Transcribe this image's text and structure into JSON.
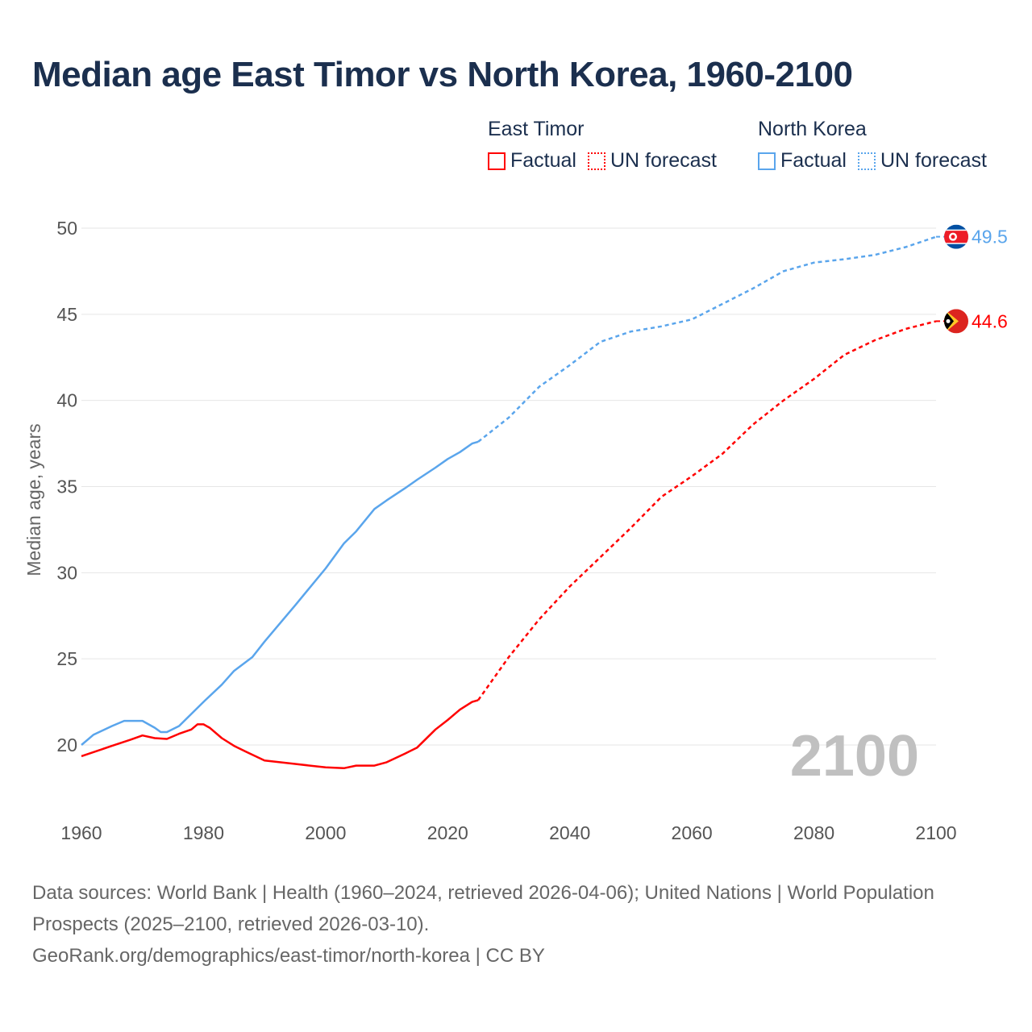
{
  "title": "Median age East Timor vs North Korea, 1960-2100",
  "legend": {
    "groups": [
      {
        "name": "East Timor",
        "factual": "Factual",
        "forecast": "UN forecast",
        "color": "#ff0000"
      },
      {
        "name": "North Korea",
        "factual": "Factual",
        "forecast": "UN forecast",
        "color": "#5aa5ec"
      }
    ]
  },
  "year_watermark": "2100",
  "footer": {
    "line1": "Data sources: World Bank | Health (1960–2024, retrieved 2026-04-06); United Nations | World Population Prospects (2025–2100, retrieved 2026-03-10).",
    "line2": "GeoRank.org/demographics/east-timor/north-korea | CC BY"
  },
  "chart_data": {
    "type": "line",
    "title": "Median age East Timor vs North Korea, 1960-2100",
    "xlabel": "",
    "ylabel": "Median age, years",
    "xlim": [
      1960,
      2100
    ],
    "ylim": [
      16.5,
      50
    ],
    "xticks": [
      1960,
      1980,
      2000,
      2020,
      2040,
      2060,
      2080,
      2100
    ],
    "yticks": [
      20,
      25,
      30,
      35,
      40,
      45,
      50
    ],
    "grid": true,
    "legend_position": "top-right",
    "series": [
      {
        "name": "East Timor",
        "color": "#ff0000",
        "end_label": "44.6",
        "factual": {
          "x": [
            1960,
            1965,
            1968,
            1970,
            1972,
            1974,
            1976,
            1978,
            1979,
            1980,
            1981,
            1983,
            1985,
            1987,
            1990,
            1995,
            2000,
            2003,
            2005,
            2008,
            2010,
            2013,
            2015,
            2018,
            2020,
            2022,
            2024,
            2025
          ],
          "y": [
            19.35,
            19.95,
            20.3,
            20.55,
            20.4,
            20.35,
            20.65,
            20.9,
            21.2,
            21.2,
            21.0,
            20.4,
            19.95,
            19.6,
            19.1,
            18.9,
            18.7,
            18.65,
            18.8,
            18.8,
            19.0,
            19.5,
            19.85,
            20.9,
            21.45,
            22.05,
            22.5,
            22.6
          ]
        },
        "forecast": {
          "x": [
            2025,
            2030,
            2035,
            2040,
            2045,
            2050,
            2055,
            2060,
            2065,
            2070,
            2075,
            2080,
            2085,
            2090,
            2095,
            2100
          ],
          "y": [
            22.6,
            25.1,
            27.3,
            29.2,
            30.9,
            32.6,
            34.4,
            35.6,
            36.9,
            38.6,
            40.0,
            41.25,
            42.65,
            43.5,
            44.15,
            44.6
          ]
        }
      },
      {
        "name": "North Korea",
        "color": "#5aa5ec",
        "end_label": "49.5",
        "factual": {
          "x": [
            1960,
            1962,
            1965,
            1967,
            1970,
            1972,
            1973,
            1974,
            1976,
            1978,
            1980,
            1983,
            1985,
            1988,
            1990,
            1995,
            2000,
            2003,
            2005,
            2008,
            2010,
            2013,
            2015,
            2018,
            2020,
            2022,
            2024,
            2025
          ],
          "y": [
            20.0,
            20.6,
            21.1,
            21.4,
            21.4,
            21.0,
            20.75,
            20.75,
            21.1,
            21.8,
            22.5,
            23.5,
            24.3,
            25.1,
            26.0,
            28.1,
            30.25,
            31.7,
            32.4,
            33.7,
            34.2,
            34.9,
            35.4,
            36.1,
            36.6,
            37.0,
            37.5,
            37.6
          ]
        },
        "forecast": {
          "x": [
            2025,
            2030,
            2035,
            2040,
            2045,
            2050,
            2055,
            2060,
            2065,
            2070,
            2075,
            2080,
            2085,
            2090,
            2095,
            2100
          ],
          "y": [
            37.6,
            39.0,
            40.8,
            42.05,
            43.4,
            44.0,
            44.3,
            44.7,
            45.6,
            46.5,
            47.5,
            48.0,
            48.2,
            48.45,
            48.9,
            49.5
          ]
        }
      }
    ]
  }
}
